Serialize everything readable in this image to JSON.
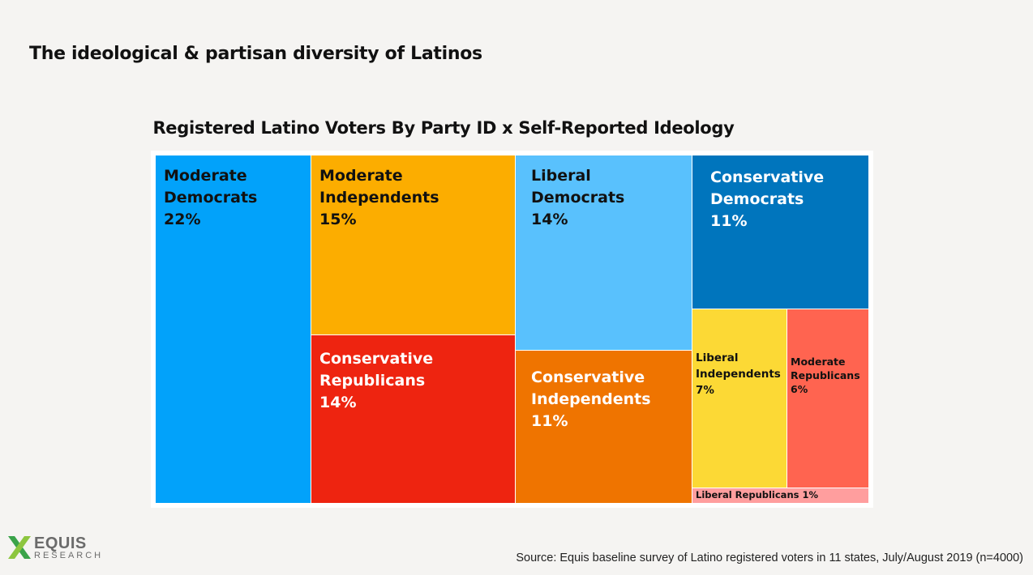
{
  "slide": {
    "title": "The ideological & partisan diversity of Latinos"
  },
  "chart_data": {
    "type": "treemap",
    "title": "Registered Latino Voters By Party ID x Self-Reported Ideology",
    "unit": "%",
    "cells": [
      {
        "name": "Moderate Democrats",
        "label_line1": "Moderate",
        "label_line2": "Democrats",
        "value": 22,
        "value_label": "22%",
        "color": "#02a2fa",
        "text_color": "#111111"
      },
      {
        "name": "Moderate Independents",
        "label_line1": "Moderate",
        "label_line2": "Independents",
        "value": 15,
        "value_label": "15%",
        "color": "#fcad00",
        "text_color": "#111111"
      },
      {
        "name": "Conservative Republicans",
        "label_line1": "Conservative",
        "label_line2": "Republicans",
        "value": 14,
        "value_label": "14%",
        "color": "#ee2410",
        "text_color": "#ffffff"
      },
      {
        "name": "Liberal Democrats",
        "label_line1": "Liberal",
        "label_line2": "Democrats",
        "value": 14,
        "value_label": "14%",
        "color": "#59c1fd",
        "text_color": "#111111"
      },
      {
        "name": "Conservative Independents",
        "label_line1": "Conservative",
        "label_line2": "Independents",
        "value": 11,
        "value_label": "11%",
        "color": "#ef7400",
        "text_color": "#ffffff"
      },
      {
        "name": "Conservative Democrats",
        "label_line1": "Conservative",
        "label_line2": "Democrats",
        "value": 11,
        "value_label": "11%",
        "color": "#0075bd",
        "text_color": "#ffffff"
      },
      {
        "name": "Liberal Independents",
        "label_line1": "Liberal",
        "label_line2": "Independents",
        "value": 7,
        "value_label": "7%",
        "color": "#fcd935",
        "text_color": "#111111"
      },
      {
        "name": "Moderate Republicans",
        "label_line1": "Moderate",
        "label_line2": "Republicans",
        "value": 6,
        "value_label": "6%",
        "color": "#ff6450",
        "text_color": "#111111"
      },
      {
        "name": "Liberal Republicans",
        "label_line1": "Liberal Republicans",
        "label_line2": "",
        "value": 1,
        "value_label": "1%",
        "color": "#ff9e9e",
        "text_color": "#111111"
      }
    ]
  },
  "logo": {
    "word": "EQUIS",
    "sub": "RESEARCH",
    "colors": [
      "#3aa34a",
      "#8dc63f"
    ]
  },
  "footer": {
    "source": "Source: Equis baseline survey of Latino registered voters in 11 states, July/August 2019 (n=4000)"
  }
}
